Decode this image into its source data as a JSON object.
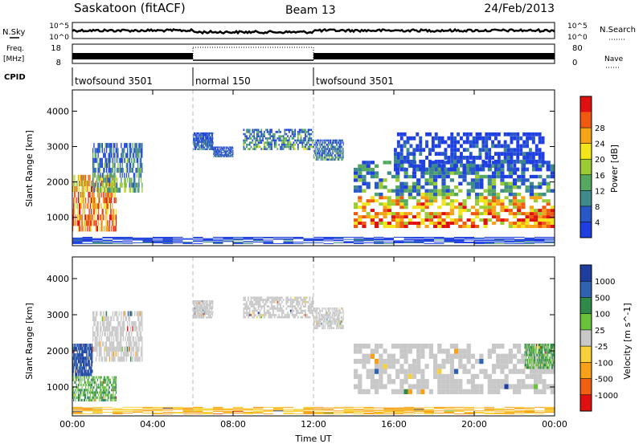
{
  "header": {
    "station": "Saskatoon (fitACF)",
    "beam": "Beam 13",
    "date": "24/Feb/2013"
  },
  "top_panels": {
    "nsky_label": "N.Sky",
    "nsky_top_tick": "10^5",
    "nsky_bottom_tick": "10^0",
    "nsearch_label": "N.Search",
    "nsearch_top_tick": "10^5",
    "nsearch_bottom_tick": "10^0",
    "freq_label": "Freq.",
    "freq_unit": "[MHz]",
    "freq_top_tick": "18",
    "freq_bottom_tick": "8",
    "nave_label": "Nave",
    "nave_top_tick": "80",
    "nave_bottom_tick": "0",
    "cpid_label": "CPID",
    "cpid_segments": [
      {
        "label": "twofsound 3501",
        "start_hour": 0,
        "end_hour": 6
      },
      {
        "label": "normal 150",
        "start_hour": 6,
        "end_hour": 12
      },
      {
        "label": "twofsound 3501",
        "start_hour": 12,
        "end_hour": 24
      }
    ]
  },
  "chart_data": [
    {
      "type": "heatmap",
      "name": "power",
      "ylabel": "Slant Range [km]",
      "ytick_labels": [
        "1000",
        "2000",
        "3000",
        "4000"
      ],
      "ylim": [
        200,
        4600
      ],
      "x_range_hours": [
        0,
        24
      ],
      "colorbar_label": "Power [dB]",
      "colorbar_ticks": [
        "4",
        "8",
        "12",
        "16",
        "20",
        "24",
        "28"
      ],
      "colorbar_colors": [
        "#1f3fe0",
        "#2858c8",
        "#3f8a8a",
        "#55a860",
        "#9ccc33",
        "#f2e61b",
        "#f7a318",
        "#f05a10",
        "#e01010"
      ],
      "regions": [
        {
          "h0": 0.0,
          "h1": 2.2,
          "r0": 600,
          "r1": 2200,
          "level": 0.85
        },
        {
          "h0": 1.0,
          "h1": 3.5,
          "r0": 1700,
          "r1": 3100,
          "level": 0.35
        },
        {
          "h0": 6.0,
          "h1": 7.0,
          "r0": 2900,
          "r1": 3400,
          "level": 0.2
        },
        {
          "h0": 7.0,
          "h1": 8.0,
          "r0": 2700,
          "r1": 3000,
          "level": 0.2
        },
        {
          "h0": 8.5,
          "h1": 12.0,
          "r0": 2900,
          "r1": 3500,
          "level": 0.35
        },
        {
          "h0": 12.0,
          "h1": 13.5,
          "r0": 2600,
          "r1": 3200,
          "level": 0.3
        },
        {
          "h0": 14.0,
          "h1": 24.0,
          "r0": 700,
          "r1": 1600,
          "level": 0.8
        },
        {
          "h0": 14.0,
          "h1": 24.0,
          "r0": 1600,
          "r1": 2600,
          "level": 0.35
        },
        {
          "h0": 16.0,
          "h1": 23.5,
          "r0": 2300,
          "r1": 3400,
          "level": 0.12
        },
        {
          "h0": 0.0,
          "h1": 24.0,
          "r0": 250,
          "r1": 450,
          "level": 0.1
        }
      ]
    },
    {
      "type": "heatmap",
      "name": "velocity",
      "ylabel": "Slant Range [km]",
      "ytick_labels": [
        "1000",
        "2000",
        "3000",
        "4000"
      ],
      "ylim": [
        200,
        4600
      ],
      "x_range_hours": [
        0,
        24
      ],
      "xlabel": "Time UT",
      "xtick_labels": [
        "00:00",
        "04:00",
        "08:00",
        "12:00",
        "16:00",
        "20:00",
        "00:00"
      ],
      "colorbar_label": "Velocity [m s^-1]",
      "colorbar_ticks": [
        "1000",
        "500",
        "100",
        "25",
        "-25",
        "-100",
        "-500",
        "-1000"
      ],
      "colorbar_colors": [
        "#1f3fa0",
        "#2f62b0",
        "#2f8a4a",
        "#6ac23a",
        "#c8c8c8",
        "#f7d03a",
        "#f7a018",
        "#f06010",
        "#e01010"
      ],
      "regions": [
        {
          "h0": 0.0,
          "h1": 2.2,
          "r0": 600,
          "r1": 1300,
          "vclass": "green"
        },
        {
          "h0": 0.0,
          "h1": 1.0,
          "r0": 1300,
          "r1": 2200,
          "vclass": "blue"
        },
        {
          "h0": 1.0,
          "h1": 3.5,
          "r0": 1700,
          "r1": 3100,
          "vclass": "grey"
        },
        {
          "h0": 6.0,
          "h1": 7.0,
          "r0": 2900,
          "r1": 3400,
          "vclass": "grey"
        },
        {
          "h0": 8.5,
          "h1": 12.0,
          "r0": 2900,
          "r1": 3500,
          "vclass": "grey"
        },
        {
          "h0": 12.0,
          "h1": 13.5,
          "r0": 2600,
          "r1": 3200,
          "vclass": "grey"
        },
        {
          "h0": 14.0,
          "h1": 24.0,
          "r0": 800,
          "r1": 2200,
          "vclass": "grey"
        },
        {
          "h0": 22.5,
          "h1": 24.0,
          "r0": 1500,
          "r1": 2200,
          "vclass": "green"
        },
        {
          "h0": 0.0,
          "h1": 24.0,
          "r0": 250,
          "r1": 450,
          "vclass": "yellow"
        }
      ]
    }
  ]
}
